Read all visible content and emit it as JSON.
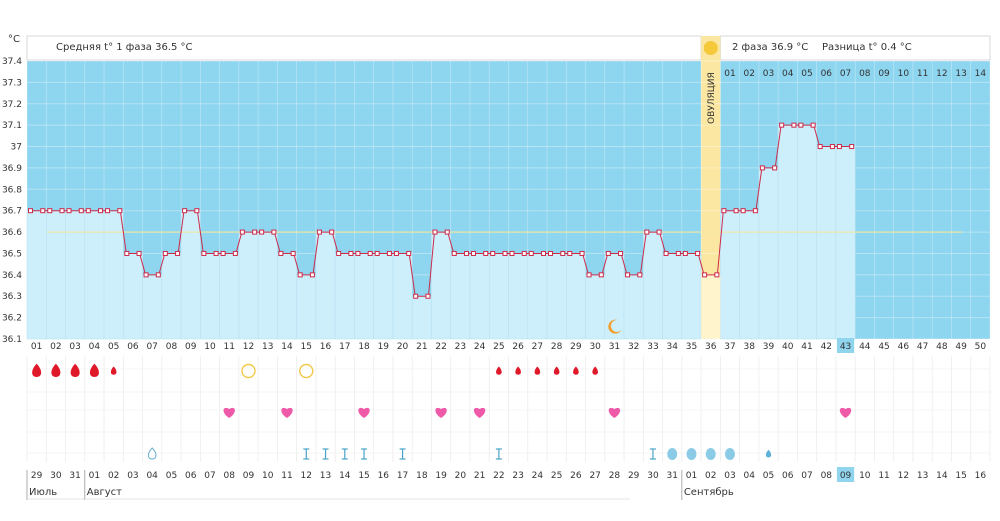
{
  "header": {
    "unit": "°C",
    "phase1_text": "Средняя t° 1 фаза 36.5 °C",
    "phase2_text": "2 фаза 36.9 °C",
    "diff_text": "Разница t° 0.4 °C"
  },
  "ovulation_label": "ОВУЛЯЦИЯ",
  "phase2_numbers": [
    "01",
    "02",
    "03",
    "04",
    "05",
    "06",
    "07",
    "08",
    "09",
    "10",
    "11",
    "12",
    "13",
    "14"
  ],
  "colors": {
    "sky": "#8ed5ef",
    "bar": "#cdeefb",
    "line": "#cc2b4a",
    "ovulation": "#fbe7a1",
    "red": "#e0192a",
    "heart": "#ee5aa8",
    "highlight": "#90d4ee"
  },
  "chart_data": {
    "type": "line",
    "title": "",
    "ylabel": "°C",
    "ylim": [
      36.1,
      37.4
    ],
    "yticks": [
      "36.1",
      "36.2",
      "36.3",
      "36.4",
      "36.5",
      "36.6",
      "36.7",
      "36.8",
      "36.9",
      "37",
      "37.1",
      "37.2",
      "37.3",
      "37.4"
    ],
    "cycle_days": [
      "01",
      "02",
      "03",
      "04",
      "05",
      "06",
      "07",
      "08",
      "09",
      "10",
      "11",
      "12",
      "13",
      "14",
      "15",
      "16",
      "17",
      "18",
      "19",
      "20",
      "21",
      "22",
      "23",
      "24",
      "25",
      "26",
      "27",
      "28",
      "29",
      "30",
      "31",
      "32",
      "33",
      "34",
      "35",
      "36",
      "37",
      "38",
      "39",
      "40",
      "41",
      "42",
      "43",
      "44",
      "45",
      "46",
      "47",
      "48",
      "49",
      "50"
    ],
    "series": [
      {
        "values": [
          36.7,
          36.7,
          36.7,
          36.7,
          36.7,
          36.5,
          36.4,
          36.5,
          36.7,
          36.5,
          36.5,
          36.6,
          36.6,
          36.5,
          36.4,
          36.6,
          36.5,
          36.5,
          36.5,
          36.5,
          36.3,
          36.6,
          36.5,
          36.5,
          36.5,
          36.5,
          36.5,
          36.5,
          36.5,
          36.4,
          36.5,
          36.4,
          36.6,
          36.5,
          36.5,
          36.4,
          36.7,
          36.7,
          36.9,
          37.1,
          37.1,
          37.0,
          37.0
        ]
      }
    ],
    "coverline": 36.6,
    "ovulation_day": 36,
    "current_day": 43,
    "calendar_dates": [
      "29",
      "30",
      "31",
      "01",
      "02",
      "03",
      "04",
      "05",
      "06",
      "07",
      "08",
      "09",
      "10",
      "11",
      "12",
      "13",
      "14",
      "15",
      "16",
      "17",
      "18",
      "19",
      "20",
      "21",
      "22",
      "23",
      "24",
      "25",
      "26",
      "27",
      "28",
      "29",
      "30",
      "31",
      "01",
      "02",
      "03",
      "04",
      "05",
      "06",
      "07",
      "08",
      "09",
      "10",
      "11",
      "12",
      "13",
      "14",
      "15",
      "16"
    ],
    "weekend_dates": [
      3,
      4,
      10,
      11,
      17,
      18,
      24,
      25,
      31,
      32,
      38,
      39,
      45,
      46
    ],
    "months": [
      {
        "label": "Июль",
        "start": 1
      },
      {
        "label": "Август",
        "start": 4
      },
      {
        "label": "Сентябрь",
        "start": 35
      }
    ],
    "bleeding_days": [
      1,
      2,
      3,
      4,
      5,
      25,
      26,
      27,
      28,
      29,
      30
    ],
    "heavy_bleeding_days": [
      1,
      2,
      3,
      4
    ],
    "circle_days": [
      12,
      15
    ],
    "heart_days": [
      11,
      14,
      18,
      22,
      24,
      31,
      43
    ],
    "drop_outline_days": [
      7
    ],
    "test_days": [
      15,
      16,
      17,
      18,
      20,
      25,
      33
    ],
    "dot_days": [
      34,
      35,
      36,
      37
    ],
    "small_drop_days": [
      39
    ],
    "moon_day": 31
  }
}
